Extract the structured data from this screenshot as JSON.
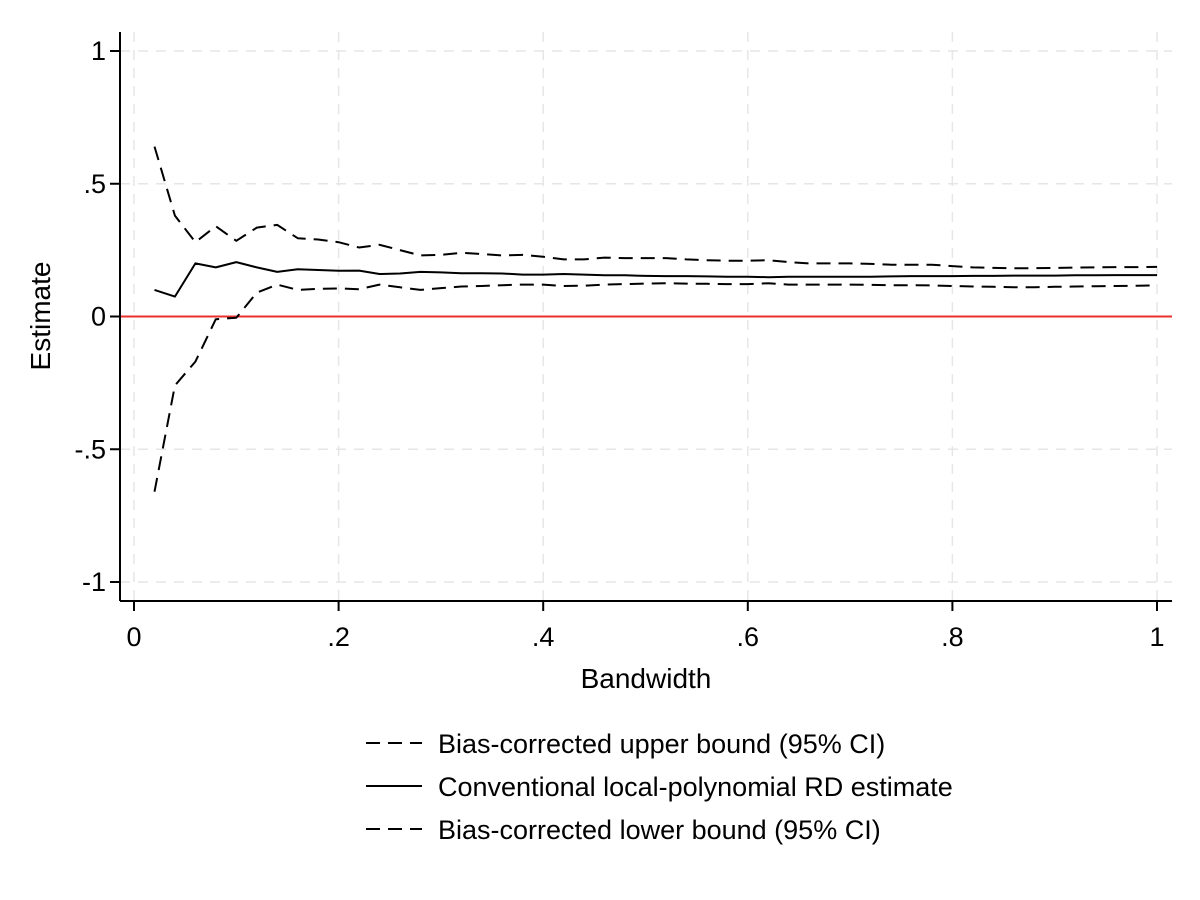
{
  "chart_data": {
    "type": "line",
    "xlabel": "Bandwidth",
    "ylabel": "Estimate",
    "xlim": [
      0,
      1
    ],
    "ylim": [
      -1,
      1
    ],
    "xticks": [
      {
        "value": 0,
        "label": "0"
      },
      {
        "value": 0.2,
        "label": ".2"
      },
      {
        "value": 0.4,
        "label": ".4"
      },
      {
        "value": 0.6,
        "label": ".6"
      },
      {
        "value": 0.8,
        "label": ".8"
      },
      {
        "value": 1,
        "label": "1"
      }
    ],
    "yticks": [
      {
        "value": 1,
        "label": "1"
      },
      {
        "value": 0.5,
        "label": ".5"
      },
      {
        "value": 0,
        "label": "0"
      },
      {
        "value": -0.5,
        "label": "-.5"
      },
      {
        "value": -1,
        "label": "-1"
      }
    ],
    "grid": true,
    "reference_line": {
      "y": 0,
      "color": "#e8322d"
    },
    "legend_position": "bottom",
    "x": [
      0.02,
      0.04,
      0.06,
      0.08,
      0.1,
      0.12,
      0.14,
      0.16,
      0.18,
      0.2,
      0.22,
      0.24,
      0.26,
      0.28,
      0.3,
      0.32,
      0.34,
      0.36,
      0.38,
      0.4,
      0.42,
      0.44,
      0.46,
      0.48,
      0.5,
      0.52,
      0.54,
      0.56,
      0.58,
      0.6,
      0.62,
      0.64,
      0.66,
      0.68,
      0.7,
      0.72,
      0.74,
      0.76,
      0.78,
      0.8,
      0.82,
      0.84,
      0.86,
      0.88,
      0.9,
      0.92,
      0.94,
      0.96,
      0.98,
      1.0
    ],
    "series": [
      {
        "name": "Bias-corrected upper bound (95% CI)",
        "style": "dashed",
        "color": "#000000",
        "values": [
          0.64,
          0.38,
          0.28,
          0.34,
          0.285,
          0.335,
          0.345,
          0.295,
          0.29,
          0.28,
          0.26,
          0.27,
          0.25,
          0.23,
          0.232,
          0.24,
          0.235,
          0.23,
          0.232,
          0.225,
          0.215,
          0.215,
          0.222,
          0.22,
          0.22,
          0.22,
          0.215,
          0.212,
          0.21,
          0.21,
          0.212,
          0.205,
          0.2,
          0.2,
          0.2,
          0.198,
          0.195,
          0.195,
          0.195,
          0.19,
          0.185,
          0.183,
          0.182,
          0.182,
          0.183,
          0.184,
          0.185,
          0.186,
          0.186,
          0.187
        ]
      },
      {
        "name": "Conventional local-polynomial RD estimate",
        "style": "solid",
        "color": "#000000",
        "values": [
          0.1,
          0.075,
          0.2,
          0.185,
          0.205,
          0.185,
          0.168,
          0.178,
          0.175,
          0.172,
          0.173,
          0.16,
          0.162,
          0.168,
          0.166,
          0.163,
          0.163,
          0.162,
          0.158,
          0.158,
          0.16,
          0.158,
          0.155,
          0.155,
          0.153,
          0.152,
          0.152,
          0.151,
          0.15,
          0.15,
          0.148,
          0.15,
          0.15,
          0.15,
          0.15,
          0.15,
          0.151,
          0.152,
          0.152,
          0.152,
          0.153,
          0.153,
          0.154,
          0.154,
          0.154,
          0.155,
          0.155,
          0.156,
          0.156,
          0.156
        ]
      },
      {
        "name": "Bias-corrected lower bound (95% CI)",
        "style": "dashed",
        "color": "#000000",
        "values": [
          -0.66,
          -0.26,
          -0.17,
          -0.01,
          -0.005,
          0.09,
          0.12,
          0.1,
          0.104,
          0.106,
          0.103,
          0.12,
          0.11,
          0.1,
          0.107,
          0.113,
          0.115,
          0.118,
          0.12,
          0.12,
          0.115,
          0.116,
          0.12,
          0.122,
          0.124,
          0.125,
          0.124,
          0.123,
          0.122,
          0.122,
          0.125,
          0.12,
          0.12,
          0.12,
          0.12,
          0.119,
          0.118,
          0.118,
          0.117,
          0.115,
          0.113,
          0.112,
          0.11,
          0.11,
          0.112,
          0.113,
          0.114,
          0.115,
          0.116,
          0.117
        ]
      }
    ]
  }
}
